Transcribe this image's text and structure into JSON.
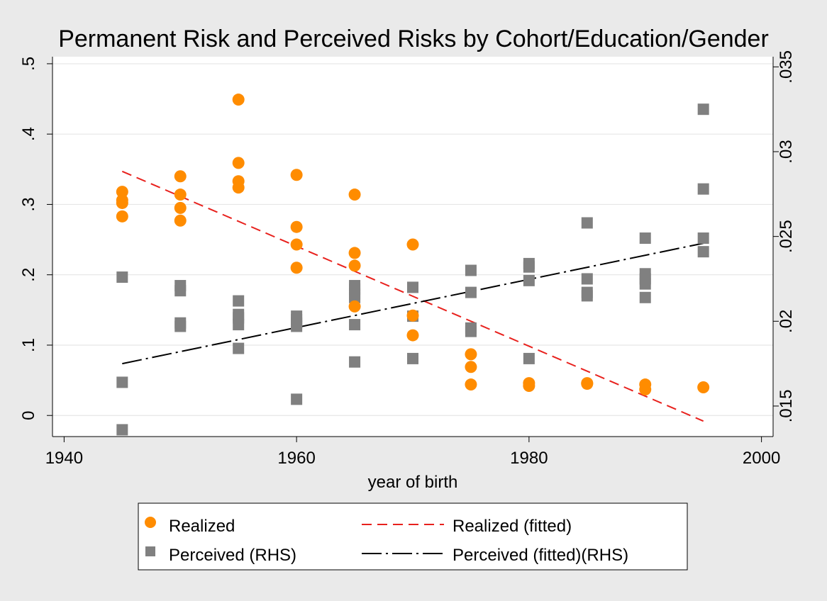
{
  "chart_data": {
    "type": "scatter",
    "title": "Permanent Risk and Perceived Risks by Cohort/Education/Gender",
    "xlabel": "year of birth",
    "ylabel_left": "",
    "ylabel_right": "",
    "xlim": [
      1939,
      2001
    ],
    "ylim_left": [
      -0.03,
      0.51
    ],
    "ylim_right": [
      0.0132,
      0.0356
    ],
    "x_ticks": [
      1940,
      1960,
      1980,
      2000
    ],
    "x_tick_labels": [
      "1940",
      "1960",
      "1980",
      "2000"
    ],
    "y_left_ticks": [
      0,
      0.1,
      0.2,
      0.3,
      0.4,
      0.5
    ],
    "y_left_tick_labels": [
      "0",
      ".1",
      ".2",
      ".3",
      ".4",
      ".5"
    ],
    "y_right_ticks": [
      0.015,
      0.02,
      0.025,
      0.03,
      0.035
    ],
    "y_right_tick_labels": [
      ".015",
      ".02",
      ".025",
      ".03",
      ".035"
    ],
    "grid": true,
    "legend_position": "bottom",
    "colors": {
      "realized": "#ff8c00",
      "perceived": "#808080",
      "realized_fit": "#e8211d",
      "perceived_fit": "#000000",
      "background": "#eaeaea",
      "plot_area": "#ffffff",
      "grid": "#e6e6e6"
    },
    "series": [
      {
        "name": "Realized",
        "axis": "left",
        "marker": "circle",
        "points": [
          [
            1945,
            0.318
          ],
          [
            1945,
            0.306
          ],
          [
            1945,
            0.302
          ],
          [
            1945,
            0.283
          ],
          [
            1950,
            0.34
          ],
          [
            1950,
            0.314
          ],
          [
            1950,
            0.295
          ],
          [
            1950,
            0.277
          ],
          [
            1955,
            0.449
          ],
          [
            1955,
            0.359
          ],
          [
            1955,
            0.333
          ],
          [
            1955,
            0.324
          ],
          [
            1960,
            0.342
          ],
          [
            1960,
            0.268
          ],
          [
            1960,
            0.243
          ],
          [
            1960,
            0.21
          ],
          [
            1965,
            0.314
          ],
          [
            1965,
            0.231
          ],
          [
            1965,
            0.213
          ],
          [
            1965,
            0.155
          ],
          [
            1970,
            0.243
          ],
          [
            1970,
            0.142
          ],
          [
            1970,
            0.114
          ],
          [
            1975,
            0.087
          ],
          [
            1975,
            0.069
          ],
          [
            1975,
            0.044
          ],
          [
            1980,
            0.046
          ],
          [
            1980,
            0.042
          ],
          [
            1985,
            0.046
          ],
          [
            1985,
            0.045
          ],
          [
            1990,
            0.044
          ],
          [
            1990,
            0.037
          ],
          [
            1995,
            0.04
          ]
        ]
      },
      {
        "name": "Perceived (RHS)",
        "axis": "right",
        "marker": "square",
        "points": [
          [
            1945,
            0.0226
          ],
          [
            1945,
            0.0164
          ],
          [
            1945,
            0.0136
          ],
          [
            1950,
            0.0221
          ],
          [
            1950,
            0.0218
          ],
          [
            1950,
            0.0199
          ],
          [
            1950,
            0.0197
          ],
          [
            1955,
            0.0212
          ],
          [
            1955,
            0.0204
          ],
          [
            1955,
            0.0202
          ],
          [
            1955,
            0.0198
          ],
          [
            1955,
            0.0184
          ],
          [
            1960,
            0.0203
          ],
          [
            1960,
            0.0201
          ],
          [
            1960,
            0.0199
          ],
          [
            1960,
            0.0197
          ],
          [
            1960,
            0.0154
          ],
          [
            1965,
            0.0221
          ],
          [
            1965,
            0.0219
          ],
          [
            1965,
            0.0216
          ],
          [
            1965,
            0.0214
          ],
          [
            1965,
            0.0198
          ],
          [
            1965,
            0.0176
          ],
          [
            1970,
            0.022
          ],
          [
            1970,
            0.0203
          ],
          [
            1970,
            0.0178
          ],
          [
            1975,
            0.023
          ],
          [
            1975,
            0.0217
          ],
          [
            1975,
            0.0196
          ],
          [
            1975,
            0.0194
          ],
          [
            1980,
            0.0234
          ],
          [
            1980,
            0.0232
          ],
          [
            1980,
            0.0224
          ],
          [
            1980,
            0.0178
          ],
          [
            1985,
            0.0258
          ],
          [
            1985,
            0.0225
          ],
          [
            1985,
            0.0217
          ],
          [
            1985,
            0.0215
          ],
          [
            1990,
            0.0249
          ],
          [
            1990,
            0.0228
          ],
          [
            1990,
            0.0225
          ],
          [
            1990,
            0.0222
          ],
          [
            1990,
            0.0214
          ],
          [
            1995,
            0.0325
          ],
          [
            1995,
            0.0278
          ],
          [
            1995,
            0.0249
          ],
          [
            1995,
            0.0241
          ]
        ]
      },
      {
        "name": "Realized (fitted)",
        "axis": "left",
        "type": "line",
        "style": "dashed",
        "points": [
          [
            1945,
            0.347
          ],
          [
            1995,
            -0.008
          ]
        ]
      },
      {
        "name": "Perceived (fitted)(RHS)",
        "axis": "right",
        "type": "line",
        "style": "dash-dot",
        "points": [
          [
            1945,
            0.0175
          ],
          [
            1995,
            0.0246
          ]
        ]
      }
    ]
  }
}
